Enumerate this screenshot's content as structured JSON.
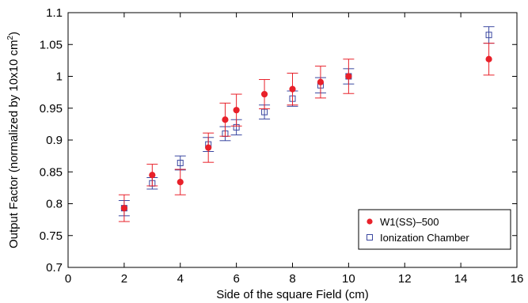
{
  "chart_data": {
    "type": "scatter",
    "xlabel": "Side of the square Field (cm)",
    "ylabel_prefix": "Output Factor (normalized by 10x10 cm",
    "ylabel_sup": "2",
    "ylabel_suffix": ")",
    "xlim": [
      0,
      16
    ],
    "ylim": [
      0.7,
      1.1
    ],
    "xticks": [
      0,
      2,
      4,
      6,
      8,
      10,
      12,
      14,
      16
    ],
    "yticks": [
      0.7,
      0.75,
      0.8,
      0.85,
      0.9,
      0.95,
      1,
      1.05,
      1.1
    ],
    "grid": false,
    "legend_position": "bottom-right",
    "series": [
      {
        "name": "W1(SS)–500",
        "marker": "filled-circle",
        "color": "#e8212a",
        "points": [
          {
            "x": 2,
            "y": 0.793,
            "err": 0.021
          },
          {
            "x": 3,
            "y": 0.845,
            "err": 0.017
          },
          {
            "x": 4,
            "y": 0.834,
            "err": 0.02
          },
          {
            "x": 5,
            "y": 0.888,
            "err": 0.023
          },
          {
            "x": 5.6,
            "y": 0.932,
            "err": 0.026
          },
          {
            "x": 6,
            "y": 0.947,
            "err": 0.025
          },
          {
            "x": 7,
            "y": 0.972,
            "err": 0.023
          },
          {
            "x": 8,
            "y": 0.98,
            "err": 0.025
          },
          {
            "x": 9,
            "y": 0.991,
            "err": 0.025
          },
          {
            "x": 10,
            "y": 1.0,
            "err": 0.027
          },
          {
            "x": 15,
            "y": 1.027,
            "err": 0.025
          }
        ]
      },
      {
        "name": "Ionization Chamber",
        "marker": "open-square",
        "color": "#3a47a0",
        "points": [
          {
            "x": 2,
            "y": 0.793,
            "err": 0.012
          },
          {
            "x": 3,
            "y": 0.832,
            "err": 0.009
          },
          {
            "x": 4,
            "y": 0.864,
            "err": 0.011
          },
          {
            "x": 5,
            "y": 0.893,
            "err": 0.011
          },
          {
            "x": 5.6,
            "y": 0.91,
            "err": 0.011
          },
          {
            "x": 6,
            "y": 0.92,
            "err": 0.012
          },
          {
            "x": 7,
            "y": 0.944,
            "err": 0.011
          },
          {
            "x": 8,
            "y": 0.965,
            "err": 0.012
          },
          {
            "x": 9,
            "y": 0.986,
            "err": 0.012
          },
          {
            "x": 10,
            "y": 1.0,
            "err": 0.012
          },
          {
            "x": 15,
            "y": 1.065,
            "err": 0.013
          }
        ]
      }
    ]
  }
}
